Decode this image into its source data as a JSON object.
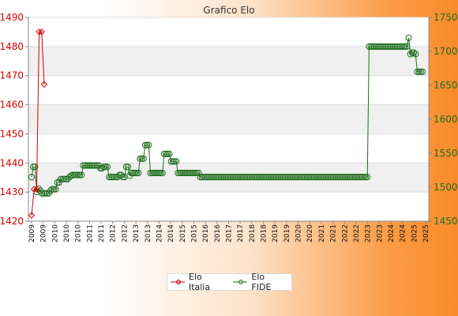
{
  "chart_data": {
    "type": "line",
    "title": "Grafico Elo",
    "xlabel": "",
    "ylabel": "",
    "grid": true,
    "legend_position": "bottom",
    "y_left": {
      "min": 1420,
      "max": 1490,
      "ticks": [
        1420,
        1430,
        1440,
        1450,
        1460,
        1470,
        1480,
        1490
      ],
      "color": "#d40000"
    },
    "y_right": {
      "min": 1450,
      "max": 1750,
      "ticks": [
        1450,
        1500,
        1550,
        1600,
        1650,
        1700,
        1750
      ],
      "color": "#1d6e1d"
    },
    "x_tick_labels": [
      "2009",
      "2009",
      "2010",
      "2010",
      "2010",
      "2011",
      "2011",
      "2012",
      "2012",
      "2013",
      "2013",
      "2014",
      "2014",
      "2015",
      "2015",
      "2016",
      "2016",
      "2017",
      "2017",
      "2018",
      "2018",
      "2019",
      "2019",
      "2020",
      "2020",
      "2021",
      "2021",
      "2022",
      "2022",
      "2023",
      "2023",
      "2024",
      "2024",
      "2025",
      "2025"
    ],
    "series": [
      {
        "name": "Elo Italia",
        "axis": "left",
        "color": "#d40000",
        "marker": "diamond",
        "values": [
          1422,
          1431,
          1431,
          1485,
          1485,
          1467
        ]
      },
      {
        "name": "Elo FIDE",
        "axis": "right",
        "color": "#1d6e1d",
        "marker": "circle",
        "values": [
          1515,
          1530,
          1530,
          1493,
          1498,
          1495,
          1491,
          1491,
          1491,
          1491,
          1491,
          1495,
          1497,
          1497,
          1497,
          1507,
          1507,
          1512,
          1512,
          1512,
          1512,
          1512,
          1515,
          1517,
          1518,
          1518,
          1518,
          1518,
          1518,
          1518,
          1532,
          1532,
          1532,
          1532,
          1532,
          1532,
          1532,
          1532,
          1532,
          1532,
          1528,
          1528,
          1530,
          1530,
          1530,
          1515,
          1515,
          1515,
          1515,
          1515,
          1515,
          1518,
          1518,
          1515,
          1515,
          1530,
          1530,
          1517,
          1521,
          1521,
          1521,
          1521,
          1521,
          1542,
          1542,
          1542,
          1562,
          1562,
          1562,
          1521,
          1521,
          1521,
          1521,
          1521,
          1521,
          1521,
          1521,
          1549,
          1549,
          1549,
          1549,
          1538,
          1538,
          1538,
          1538,
          1521,
          1521,
          1521,
          1521,
          1521,
          1521,
          1521,
          1521,
          1521,
          1521,
          1521,
          1521,
          1521,
          1515,
          1515,
          1515,
          1515,
          1515,
          1515,
          1515,
          1515,
          1515,
          1515,
          1515,
          1515,
          1515,
          1515,
          1515,
          1515,
          1515,
          1515,
          1515,
          1515,
          1515,
          1515,
          1515,
          1515,
          1515,
          1515,
          1515,
          1515,
          1515,
          1515,
          1515,
          1515,
          1515,
          1515,
          1515,
          1515,
          1515,
          1515,
          1515,
          1515,
          1515,
          1515,
          1515,
          1515,
          1515,
          1515,
          1515,
          1515,
          1515,
          1515,
          1515,
          1515,
          1515,
          1515,
          1515,
          1515,
          1515,
          1515,
          1515,
          1515,
          1515,
          1515,
          1515,
          1515,
          1515,
          1515,
          1515,
          1515,
          1515,
          1515,
          1515,
          1515,
          1515,
          1515,
          1515,
          1515,
          1515,
          1515,
          1515,
          1515,
          1515,
          1515,
          1515,
          1515,
          1515,
          1515,
          1515,
          1515,
          1515,
          1515,
          1515,
          1515,
          1515,
          1515,
          1515,
          1515,
          1515,
          1515,
          1707,
          1707,
          1707,
          1707,
          1707,
          1707,
          1707,
          1707,
          1707,
          1707,
          1707,
          1707,
          1707,
          1707,
          1707,
          1707,
          1707,
          1707,
          1707,
          1707,
          1707,
          1707,
          1707,
          1720,
          1696,
          1698,
          1698,
          1696,
          1670,
          1670,
          1670,
          1670
        ]
      }
    ]
  }
}
